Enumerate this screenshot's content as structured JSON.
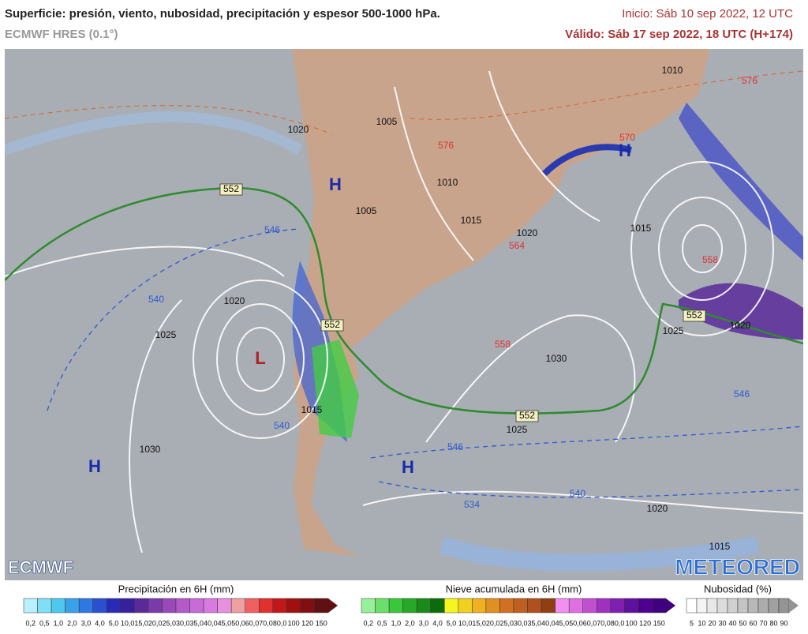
{
  "header": {
    "title": "Superficie: presión, viento, nubosidad, precipitación y espesor 500-1000 hPa.",
    "model": "ECMWF HRES (0.1°)",
    "init": "Inicio: Sáb 10 sep 2022, 12 UTC",
    "valid": "Válido: Sáb 17 sep 2022, 18 UTC (H+174)"
  },
  "map": {
    "labels": [
      "1020",
      "1005",
      "1010",
      "1005",
      "1015",
      "1020",
      "1010",
      "576",
      "1015",
      "552",
      "546",
      "540",
      "1020",
      "1025",
      "552",
      "558",
      "1030",
      "1025",
      "552",
      "1020",
      "552",
      "1025",
      "1015",
      "540",
      "546",
      "1030",
      "540",
      "534",
      "1020",
      "1015",
      "546",
      "564",
      "570",
      "576",
      "558"
    ],
    "centers": [
      "H",
      "H",
      "L",
      "H",
      "H"
    ],
    "logos": [
      "ECMWF",
      "METEORED"
    ]
  },
  "legend": {
    "precipitation": {
      "title": "Precipitación en 6H (mm)",
      "ticks": [
        "0,2",
        "0,5",
        "1,0",
        "2,0",
        "3,0",
        "4,0",
        "5,0",
        "10,0",
        "15,0",
        "20,0",
        "25,0",
        "30,0",
        "35,0",
        "40,0",
        "45,0",
        "50,0",
        "60,0",
        "70,0",
        "80,0",
        "100",
        "120",
        "150"
      ]
    },
    "snow": {
      "title": "Nieve acumulada en 6H (mm)",
      "ticks": [
        "0,2",
        "0,5",
        "1,0",
        "2,0",
        "3,0",
        "4,0",
        "5,0",
        "10,0",
        "15,0",
        "20,0",
        "25,0",
        "30,0",
        "35,0",
        "40,0",
        "45,0",
        "50,0",
        "60,0",
        "70,0",
        "80,0",
        "100",
        "120",
        "150"
      ]
    },
    "clouds": {
      "title": "Nubosidad (%)",
      "ticks": [
        "5",
        "10",
        "20",
        "30",
        "40",
        "50",
        "60",
        "70",
        "80",
        "90"
      ]
    }
  }
}
